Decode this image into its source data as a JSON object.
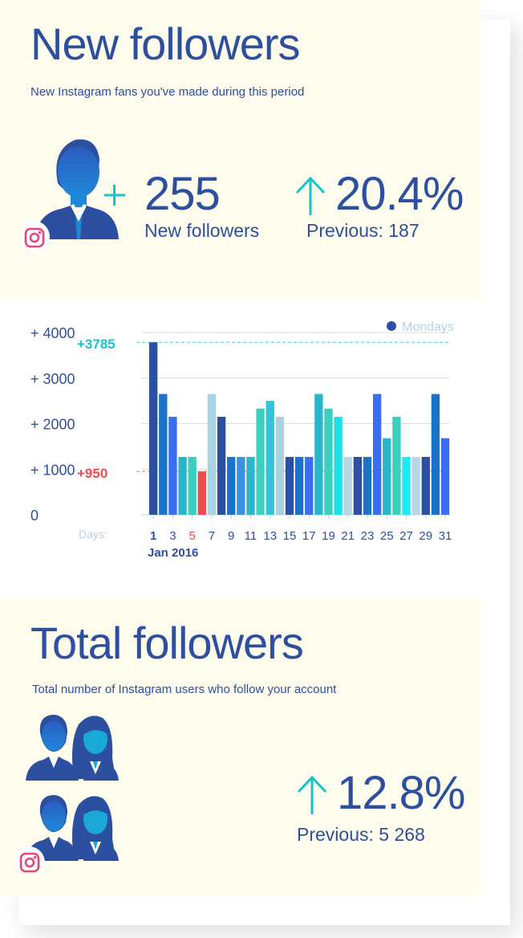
{
  "new_followers": {
    "title": "New followers",
    "subtitle": "New Instagram fans you've made during this period",
    "count": "255",
    "count_label": "New followers",
    "change": "20.4%",
    "previous_label": "Previous:",
    "previous_value": "187",
    "plus_icon": "plus-icon",
    "arrow_icon": "arrow-up-icon"
  },
  "chart_data": {
    "type": "bar",
    "title": "",
    "xlabel": "Days:",
    "ylabel": "",
    "period_label": "Jan 2016",
    "ylim": [
      0,
      4000
    ],
    "y_ticks": [
      {
        "value": 0,
        "label": "0"
      },
      {
        "value": 1000,
        "label": "+ 1000"
      },
      {
        "value": 2000,
        "label": "+ 2000"
      },
      {
        "value": 3000,
        "label": "+ 3000"
      },
      {
        "value": 4000,
        "label": "+ 4000"
      }
    ],
    "x_tick_labels": [
      "1",
      "3",
      "5",
      "7",
      "9",
      "11",
      "13",
      "15",
      "17",
      "19",
      "21",
      "23",
      "25",
      "27",
      "29",
      "31"
    ],
    "legend": {
      "label": "Mondays",
      "color": "#2d4fa0",
      "position": "top-right"
    },
    "max_annotation": {
      "label": "+3785",
      "value": 3785,
      "color": "#12c4d0"
    },
    "min_annotation": {
      "label": "+950",
      "value": 950,
      "color": "#f2484f"
    },
    "grid": true,
    "categories": [
      1,
      2,
      3,
      4,
      5,
      6,
      7,
      8,
      9,
      10,
      11,
      12,
      13,
      14,
      15,
      16,
      17,
      18,
      19,
      20,
      21,
      22,
      23,
      24,
      25,
      26,
      27,
      28,
      29,
      30,
      31
    ],
    "values": [
      3785,
      2650,
      2150,
      1270,
      1270,
      950,
      2650,
      2150,
      1270,
      1270,
      1270,
      2330,
      2500,
      2150,
      1270,
      1270,
      1270,
      2650,
      2330,
      2150,
      1270,
      1270,
      1270,
      2650,
      1680,
      2150,
      1270,
      1270,
      1270,
      2650,
      1680
    ],
    "colors": [
      "#2d4fa0",
      "#1a73c8",
      "#3a6ef0",
      "#29b6c8",
      "#3ccfc0",
      "#f2484f",
      "#a7d3e3",
      "#2d4fa0",
      "#1a73c8",
      "#3d8fe0",
      "#29b6c8",
      "#3ccfc0",
      "#2ec6d8",
      "#a7d3e3",
      "#2d4fa0",
      "#1a73c8",
      "#3a6ef0",
      "#29b6c8",
      "#3ccfc0",
      "#1ee0e6",
      "#b7d7e6",
      "#2d4fa0",
      "#1a73c8",
      "#3a6ef0",
      "#29b6c8",
      "#3ccfc0",
      "#1ee8f0",
      "#b7d7e6",
      "#2d4fa0",
      "#1a73c8",
      "#3a6ef0"
    ]
  },
  "total_followers": {
    "title": "Total followers",
    "subtitle": "Total number of Instagram users who follow your account",
    "change": "12.8%",
    "previous_label": "Previous:",
    "previous_value": "5 268",
    "arrow_icon": "arrow-up-icon"
  },
  "colors": {
    "primary": "#2d4fa0",
    "accent": "#12c4d0",
    "cream": "#fefcec",
    "instagram": "#e8457a"
  }
}
